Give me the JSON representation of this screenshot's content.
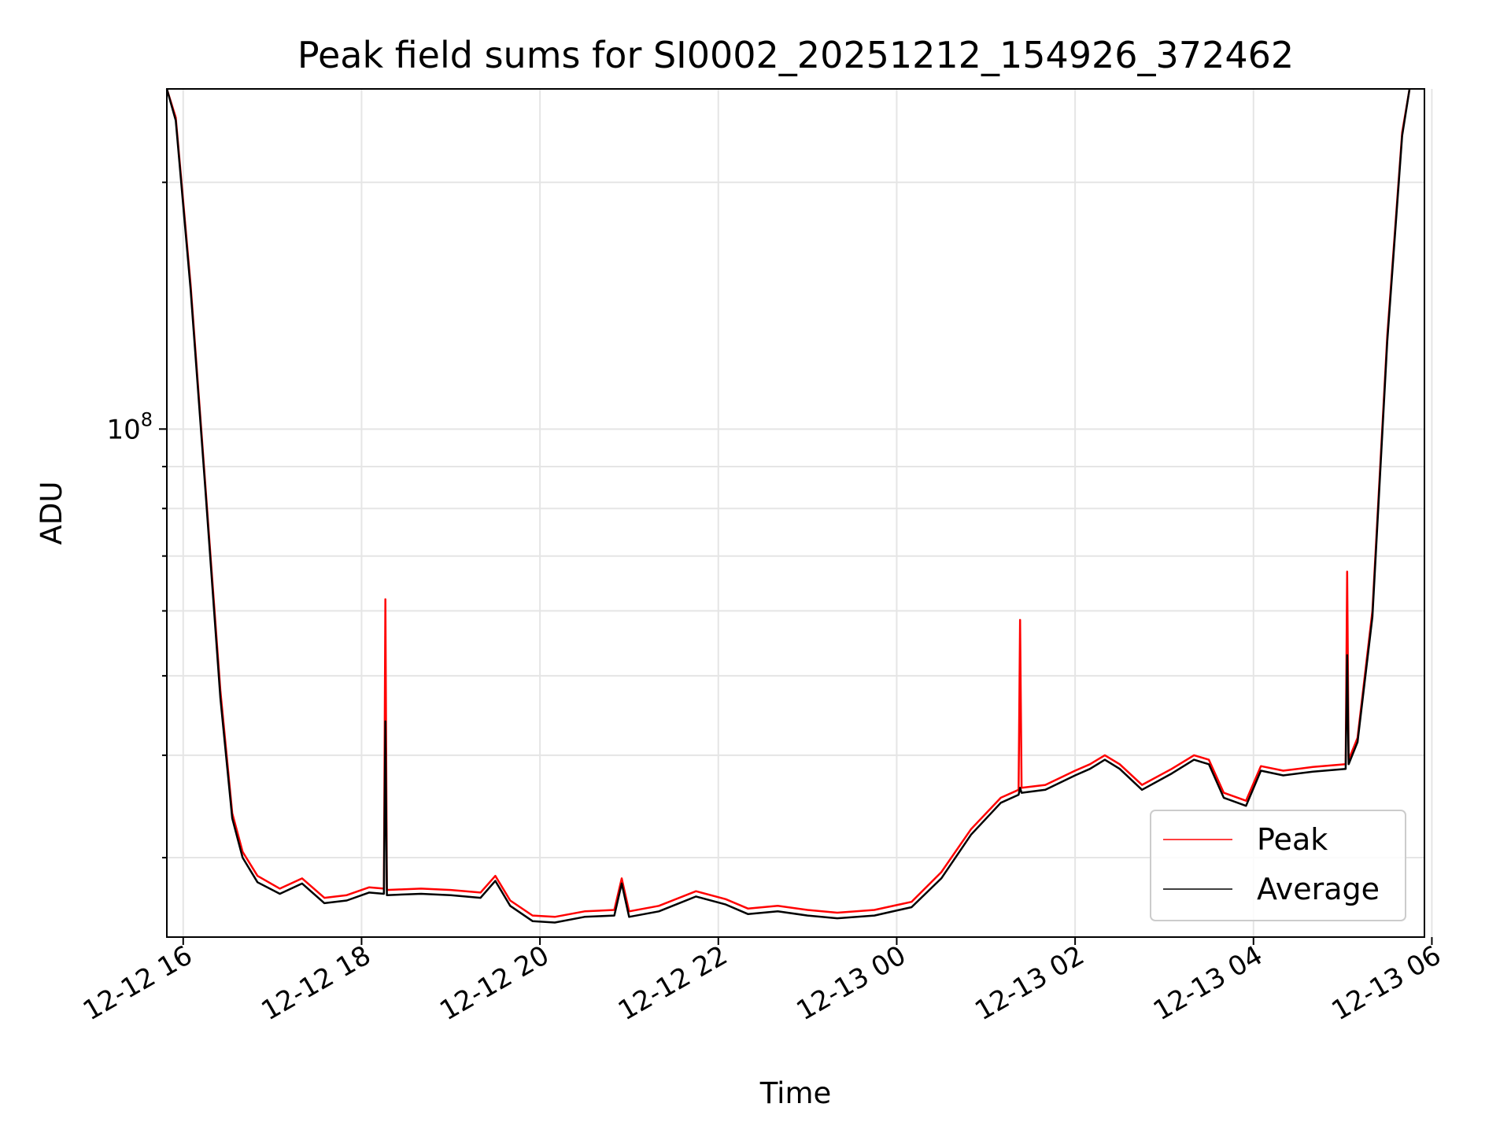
{
  "chart_data": {
    "type": "line",
    "title": "Peak field sums for SI0002_20251212_154926_372462",
    "xlabel": "Time",
    "ylabel": "ADU",
    "yscale": "log",
    "grid": true,
    "legend_position": "lower-right",
    "xlim": [
      "2025-12-12T15:49",
      "2025-12-13T05:55"
    ],
    "ylim": [
      24000000,
      260000000
    ],
    "x_ticks": [
      {
        "value": "2025-12-12T16:00",
        "label": "12-12 16"
      },
      {
        "value": "2025-12-12T18:00",
        "label": "12-12 18"
      },
      {
        "value": "2025-12-12T20:00",
        "label": "12-12 20"
      },
      {
        "value": "2025-12-12T22:00",
        "label": "12-12 22"
      },
      {
        "value": "2025-12-13T00:00",
        "label": "12-13 00"
      },
      {
        "value": "2025-12-13T02:00",
        "label": "12-13 02"
      },
      {
        "value": "2025-12-13T04:00",
        "label": "12-13 04"
      },
      {
        "value": "2025-12-13T06:00",
        "label": "12-13 06"
      }
    ],
    "y_major_ticks": [
      {
        "value": 100000000,
        "base": "10",
        "exponent": "8"
      }
    ],
    "y_minor_ticks": [
      30000000,
      40000000,
      50000000,
      60000000,
      70000000,
      80000000,
      90000000,
      200000000
    ],
    "series": [
      {
        "name": "Peak",
        "color": "#ff0000",
        "points": [
          [
            "2025-12-12T15:49",
            260000000
          ],
          [
            "2025-12-12T15:55",
            240000000
          ],
          [
            "2025-12-12T16:05",
            150000000
          ],
          [
            "2025-12-12T16:15",
            85000000
          ],
          [
            "2025-12-12T16:25",
            48000000
          ],
          [
            "2025-12-12T16:33",
            34000000
          ],
          [
            "2025-12-12T16:40",
            30500000
          ],
          [
            "2025-12-12T16:50",
            28500000
          ],
          [
            "2025-12-12T17:05",
            27500000
          ],
          [
            "2025-12-12T17:20",
            28300000
          ],
          [
            "2025-12-12T17:35",
            26800000
          ],
          [
            "2025-12-12T17:50",
            27000000
          ],
          [
            "2025-12-12T18:05",
            27600000
          ],
          [
            "2025-12-12T18:15",
            27500000
          ],
          [
            "2025-12-12T18:16",
            62000000
          ],
          [
            "2025-12-12T18:17",
            27400000
          ],
          [
            "2025-12-12T18:40",
            27500000
          ],
          [
            "2025-12-12T19:00",
            27400000
          ],
          [
            "2025-12-12T19:20",
            27200000
          ],
          [
            "2025-12-12T19:30",
            28500000
          ],
          [
            "2025-12-12T19:40",
            26600000
          ],
          [
            "2025-12-12T19:55",
            25500000
          ],
          [
            "2025-12-12T20:10",
            25400000
          ],
          [
            "2025-12-12T20:30",
            25800000
          ],
          [
            "2025-12-12T20:50",
            25900000
          ],
          [
            "2025-12-12T20:55",
            28300000
          ],
          [
            "2025-12-12T21:00",
            25800000
          ],
          [
            "2025-12-12T21:20",
            26200000
          ],
          [
            "2025-12-12T21:45",
            27300000
          ],
          [
            "2025-12-12T22:05",
            26700000
          ],
          [
            "2025-12-12T22:20",
            26000000
          ],
          [
            "2025-12-12T22:40",
            26200000
          ],
          [
            "2025-12-12T23:00",
            25900000
          ],
          [
            "2025-12-12T23:20",
            25700000
          ],
          [
            "2025-12-12T23:45",
            25900000
          ],
          [
            "2025-12-13T00:10",
            26500000
          ],
          [
            "2025-12-13T00:30",
            28800000
          ],
          [
            "2025-12-13T00:50",
            32500000
          ],
          [
            "2025-12-13T01:10",
            35500000
          ],
          [
            "2025-12-13T01:22",
            36300000
          ],
          [
            "2025-12-13T01:23",
            58500000
          ],
          [
            "2025-12-13T01:24",
            36500000
          ],
          [
            "2025-12-13T01:40",
            36800000
          ],
          [
            "2025-12-13T02:00",
            38300000
          ],
          [
            "2025-12-13T02:10",
            39000000
          ],
          [
            "2025-12-13T02:20",
            40000000
          ],
          [
            "2025-12-13T02:30",
            39000000
          ],
          [
            "2025-12-13T02:45",
            36800000
          ],
          [
            "2025-12-13T03:05",
            38500000
          ],
          [
            "2025-12-13T03:20",
            40000000
          ],
          [
            "2025-12-13T03:30",
            39500000
          ],
          [
            "2025-12-13T03:40",
            36000000
          ],
          [
            "2025-12-13T03:55",
            35200000
          ],
          [
            "2025-12-13T04:05",
            38800000
          ],
          [
            "2025-12-13T04:20",
            38300000
          ],
          [
            "2025-12-13T04:40",
            38700000
          ],
          [
            "2025-12-13T05:02",
            39000000
          ],
          [
            "2025-12-13T05:03",
            67000000
          ],
          [
            "2025-12-13T05:04",
            39500000
          ],
          [
            "2025-12-13T05:10",
            42000000
          ],
          [
            "2025-12-13T05:20",
            60000000
          ],
          [
            "2025-12-13T05:30",
            130000000
          ],
          [
            "2025-12-13T05:40",
            230000000
          ],
          [
            "2025-12-13T05:45",
            260000000
          ]
        ]
      },
      {
        "name": "Average",
        "color": "#000000",
        "points": [
          [
            "2025-12-12T15:49",
            260000000
          ],
          [
            "2025-12-12T15:55",
            238000000
          ],
          [
            "2025-12-12T16:05",
            148000000
          ],
          [
            "2025-12-12T16:15",
            84000000
          ],
          [
            "2025-12-12T16:25",
            47000000
          ],
          [
            "2025-12-12T16:33",
            33500000
          ],
          [
            "2025-12-12T16:40",
            30000000
          ],
          [
            "2025-12-12T16:50",
            28000000
          ],
          [
            "2025-12-12T17:05",
            27100000
          ],
          [
            "2025-12-12T17:20",
            27900000
          ],
          [
            "2025-12-12T17:35",
            26400000
          ],
          [
            "2025-12-12T17:50",
            26600000
          ],
          [
            "2025-12-12T18:05",
            27200000
          ],
          [
            "2025-12-12T18:15",
            27100000
          ],
          [
            "2025-12-12T18:16",
            44000000
          ],
          [
            "2025-12-12T18:17",
            27000000
          ],
          [
            "2025-12-12T18:40",
            27100000
          ],
          [
            "2025-12-12T19:00",
            27000000
          ],
          [
            "2025-12-12T19:20",
            26800000
          ],
          [
            "2025-12-12T19:30",
            28100000
          ],
          [
            "2025-12-12T19:40",
            26200000
          ],
          [
            "2025-12-12T19:55",
            25100000
          ],
          [
            "2025-12-12T20:10",
            25000000
          ],
          [
            "2025-12-12T20:30",
            25400000
          ],
          [
            "2025-12-12T20:50",
            25500000
          ],
          [
            "2025-12-12T20:55",
            27900000
          ],
          [
            "2025-12-12T21:00",
            25400000
          ],
          [
            "2025-12-12T21:20",
            25800000
          ],
          [
            "2025-12-12T21:45",
            26900000
          ],
          [
            "2025-12-12T22:05",
            26300000
          ],
          [
            "2025-12-12T22:20",
            25600000
          ],
          [
            "2025-12-12T22:40",
            25800000
          ],
          [
            "2025-12-12T23:00",
            25500000
          ],
          [
            "2025-12-12T23:20",
            25300000
          ],
          [
            "2025-12-12T23:45",
            25500000
          ],
          [
            "2025-12-13T00:10",
            26100000
          ],
          [
            "2025-12-13T00:30",
            28300000
          ],
          [
            "2025-12-13T00:50",
            32000000
          ],
          [
            "2025-12-13T01:10",
            35000000
          ],
          [
            "2025-12-13T01:22",
            35800000
          ],
          [
            "2025-12-13T01:23",
            36500000
          ],
          [
            "2025-12-13T01:24",
            36000000
          ],
          [
            "2025-12-13T01:40",
            36300000
          ],
          [
            "2025-12-13T02:00",
            37800000
          ],
          [
            "2025-12-13T02:10",
            38500000
          ],
          [
            "2025-12-13T02:20",
            39500000
          ],
          [
            "2025-12-13T02:30",
            38500000
          ],
          [
            "2025-12-13T02:45",
            36300000
          ],
          [
            "2025-12-13T03:05",
            38000000
          ],
          [
            "2025-12-13T03:20",
            39500000
          ],
          [
            "2025-12-13T03:30",
            39000000
          ],
          [
            "2025-12-13T03:40",
            35500000
          ],
          [
            "2025-12-13T03:55",
            34700000
          ],
          [
            "2025-12-13T04:05",
            38300000
          ],
          [
            "2025-12-13T04:20",
            37800000
          ],
          [
            "2025-12-13T04:40",
            38200000
          ],
          [
            "2025-12-13T05:02",
            38500000
          ],
          [
            "2025-12-13T05:03",
            53000000
          ],
          [
            "2025-12-13T05:04",
            39000000
          ],
          [
            "2025-12-13T05:10",
            41500000
          ],
          [
            "2025-12-13T05:20",
            59000000
          ],
          [
            "2025-12-13T05:30",
            128000000
          ],
          [
            "2025-12-13T05:40",
            228000000
          ],
          [
            "2025-12-13T05:45",
            260000000
          ]
        ]
      }
    ]
  }
}
